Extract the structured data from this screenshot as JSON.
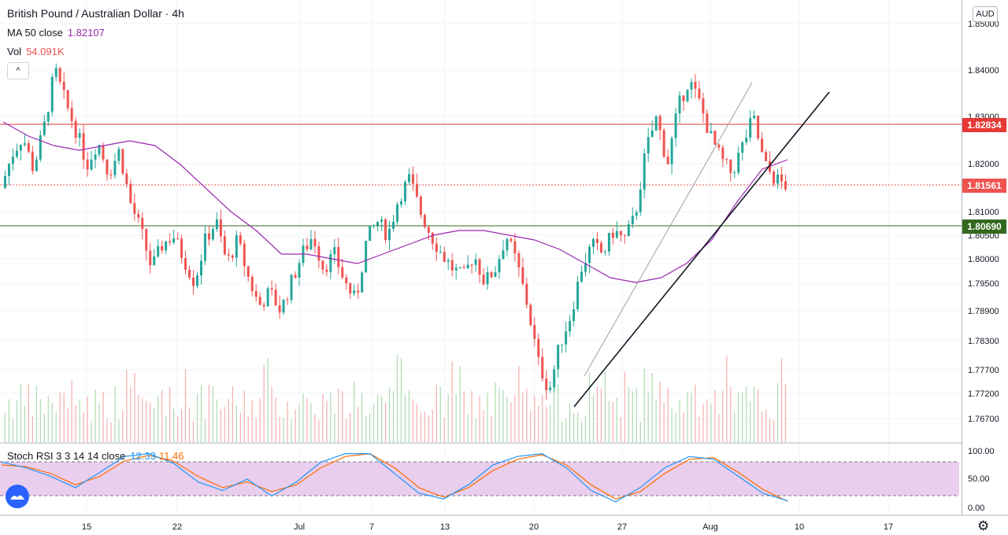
{
  "header": {
    "symbol_title": "British Pound / Australian Dollar · 4h",
    "ma_label": "MA 50 close",
    "ma_value": "1.82107",
    "vol_label": "Vol",
    "vol_value": "54.091K",
    "collapse_glyph": "^",
    "currency": "AUD"
  },
  "stoch": {
    "label": "Stoch RSI 3 3 14 14 close",
    "k_value": "12.33",
    "d_value": "11.46",
    "ticks": [
      "100.00",
      "50.00",
      "0.00"
    ]
  },
  "price_tags": {
    "resistance": "1.82834",
    "last": "1.81561",
    "support": "1.80690"
  },
  "colors": {
    "up": "#26a69a",
    "down": "#ef5350",
    "ma": "#9c27b0",
    "resistance": "#e53935",
    "support": "#33691e",
    "stoch_band": "#e1bee7",
    "k": "#2196f3",
    "d": "#ff6d00"
  },
  "icons": {
    "logo": "tradingview-logo-icon",
    "settings": "gear-icon"
  },
  "chart_data": {
    "type": "candlestick",
    "price_ticks": [
      "1.85000",
      "1.84000",
      "1.83000",
      "1.82000",
      "1.81000",
      "1.80500",
      "1.80000",
      "1.79500",
      "1.78900",
      "1.78300",
      "1.77700",
      "1.77200",
      "1.76700"
    ],
    "x_labels": [
      "15",
      "22",
      "Jul",
      "7",
      "13",
      "20",
      "27",
      "Aug",
      "10",
      "17"
    ],
    "horizontal_levels": [
      {
        "name": "resistance",
        "value": 1.82834
      },
      {
        "name": "last",
        "value": 1.81561
      },
      {
        "name": "support",
        "value": 1.8069
      }
    ],
    "trendlines": [
      {
        "name": "thin-trendline",
        "from": [
          "Jul 22",
          1.774
        ],
        "to": [
          "Aug 5",
          1.837
        ]
      },
      {
        "name": "thick-trendline",
        "from": [
          "Jul 22",
          1.771
        ],
        "to": [
          "Aug 11",
          1.832
        ]
      }
    ],
    "close_path": [
      1.815,
      1.822,
      1.826,
      1.819,
      1.828,
      1.84,
      1.833,
      1.827,
      1.82,
      1.825,
      1.818,
      1.823,
      1.812,
      1.806,
      1.798,
      1.803,
      1.805,
      1.8,
      1.795,
      1.804,
      1.808,
      1.799,
      1.804,
      1.796,
      1.79,
      1.793,
      1.789,
      1.795,
      1.801,
      1.805,
      1.798,
      1.801,
      1.795,
      1.791,
      1.804,
      1.808,
      1.805,
      1.813,
      1.817,
      1.81,
      1.805,
      1.801,
      1.798,
      1.796,
      1.801,
      1.795,
      1.798,
      1.805,
      1.799,
      1.79,
      1.778,
      1.772,
      1.782,
      1.788,
      1.798,
      1.803,
      1.801,
      1.806,
      1.804,
      1.809,
      1.823,
      1.83,
      1.82,
      1.832,
      1.838,
      1.833,
      1.826,
      1.821,
      1.818,
      1.824,
      1.83,
      1.82,
      1.817,
      1.8156
    ],
    "ma50_path": [
      1.829,
      1.826,
      1.824,
      1.823,
      1.824,
      1.825,
      1.824,
      1.82,
      1.815,
      1.81,
      1.806,
      1.801,
      1.801,
      1.8,
      1.799,
      1.801,
      1.803,
      1.805,
      1.806,
      1.806,
      1.805,
      1.804,
      1.802,
      1.799,
      1.796,
      1.795,
      1.796,
      1.799,
      1.804,
      1.812,
      1.819,
      1.821
    ],
    "stoch_k": [
      80,
      70,
      55,
      35,
      62,
      90,
      95,
      78,
      45,
      30,
      50,
      20,
      45,
      80,
      95,
      95,
      60,
      25,
      15,
      40,
      75,
      90,
      95,
      70,
      30,
      10,
      35,
      70,
      90,
      85,
      55,
      25,
      12
    ],
    "stoch_d": [
      75,
      72,
      60,
      40,
      55,
      82,
      92,
      82,
      55,
      35,
      45,
      28,
      40,
      70,
      90,
      95,
      70,
      35,
      18,
      35,
      65,
      85,
      93,
      75,
      40,
      15,
      28,
      60,
      85,
      88,
      62,
      32,
      11
    ]
  }
}
